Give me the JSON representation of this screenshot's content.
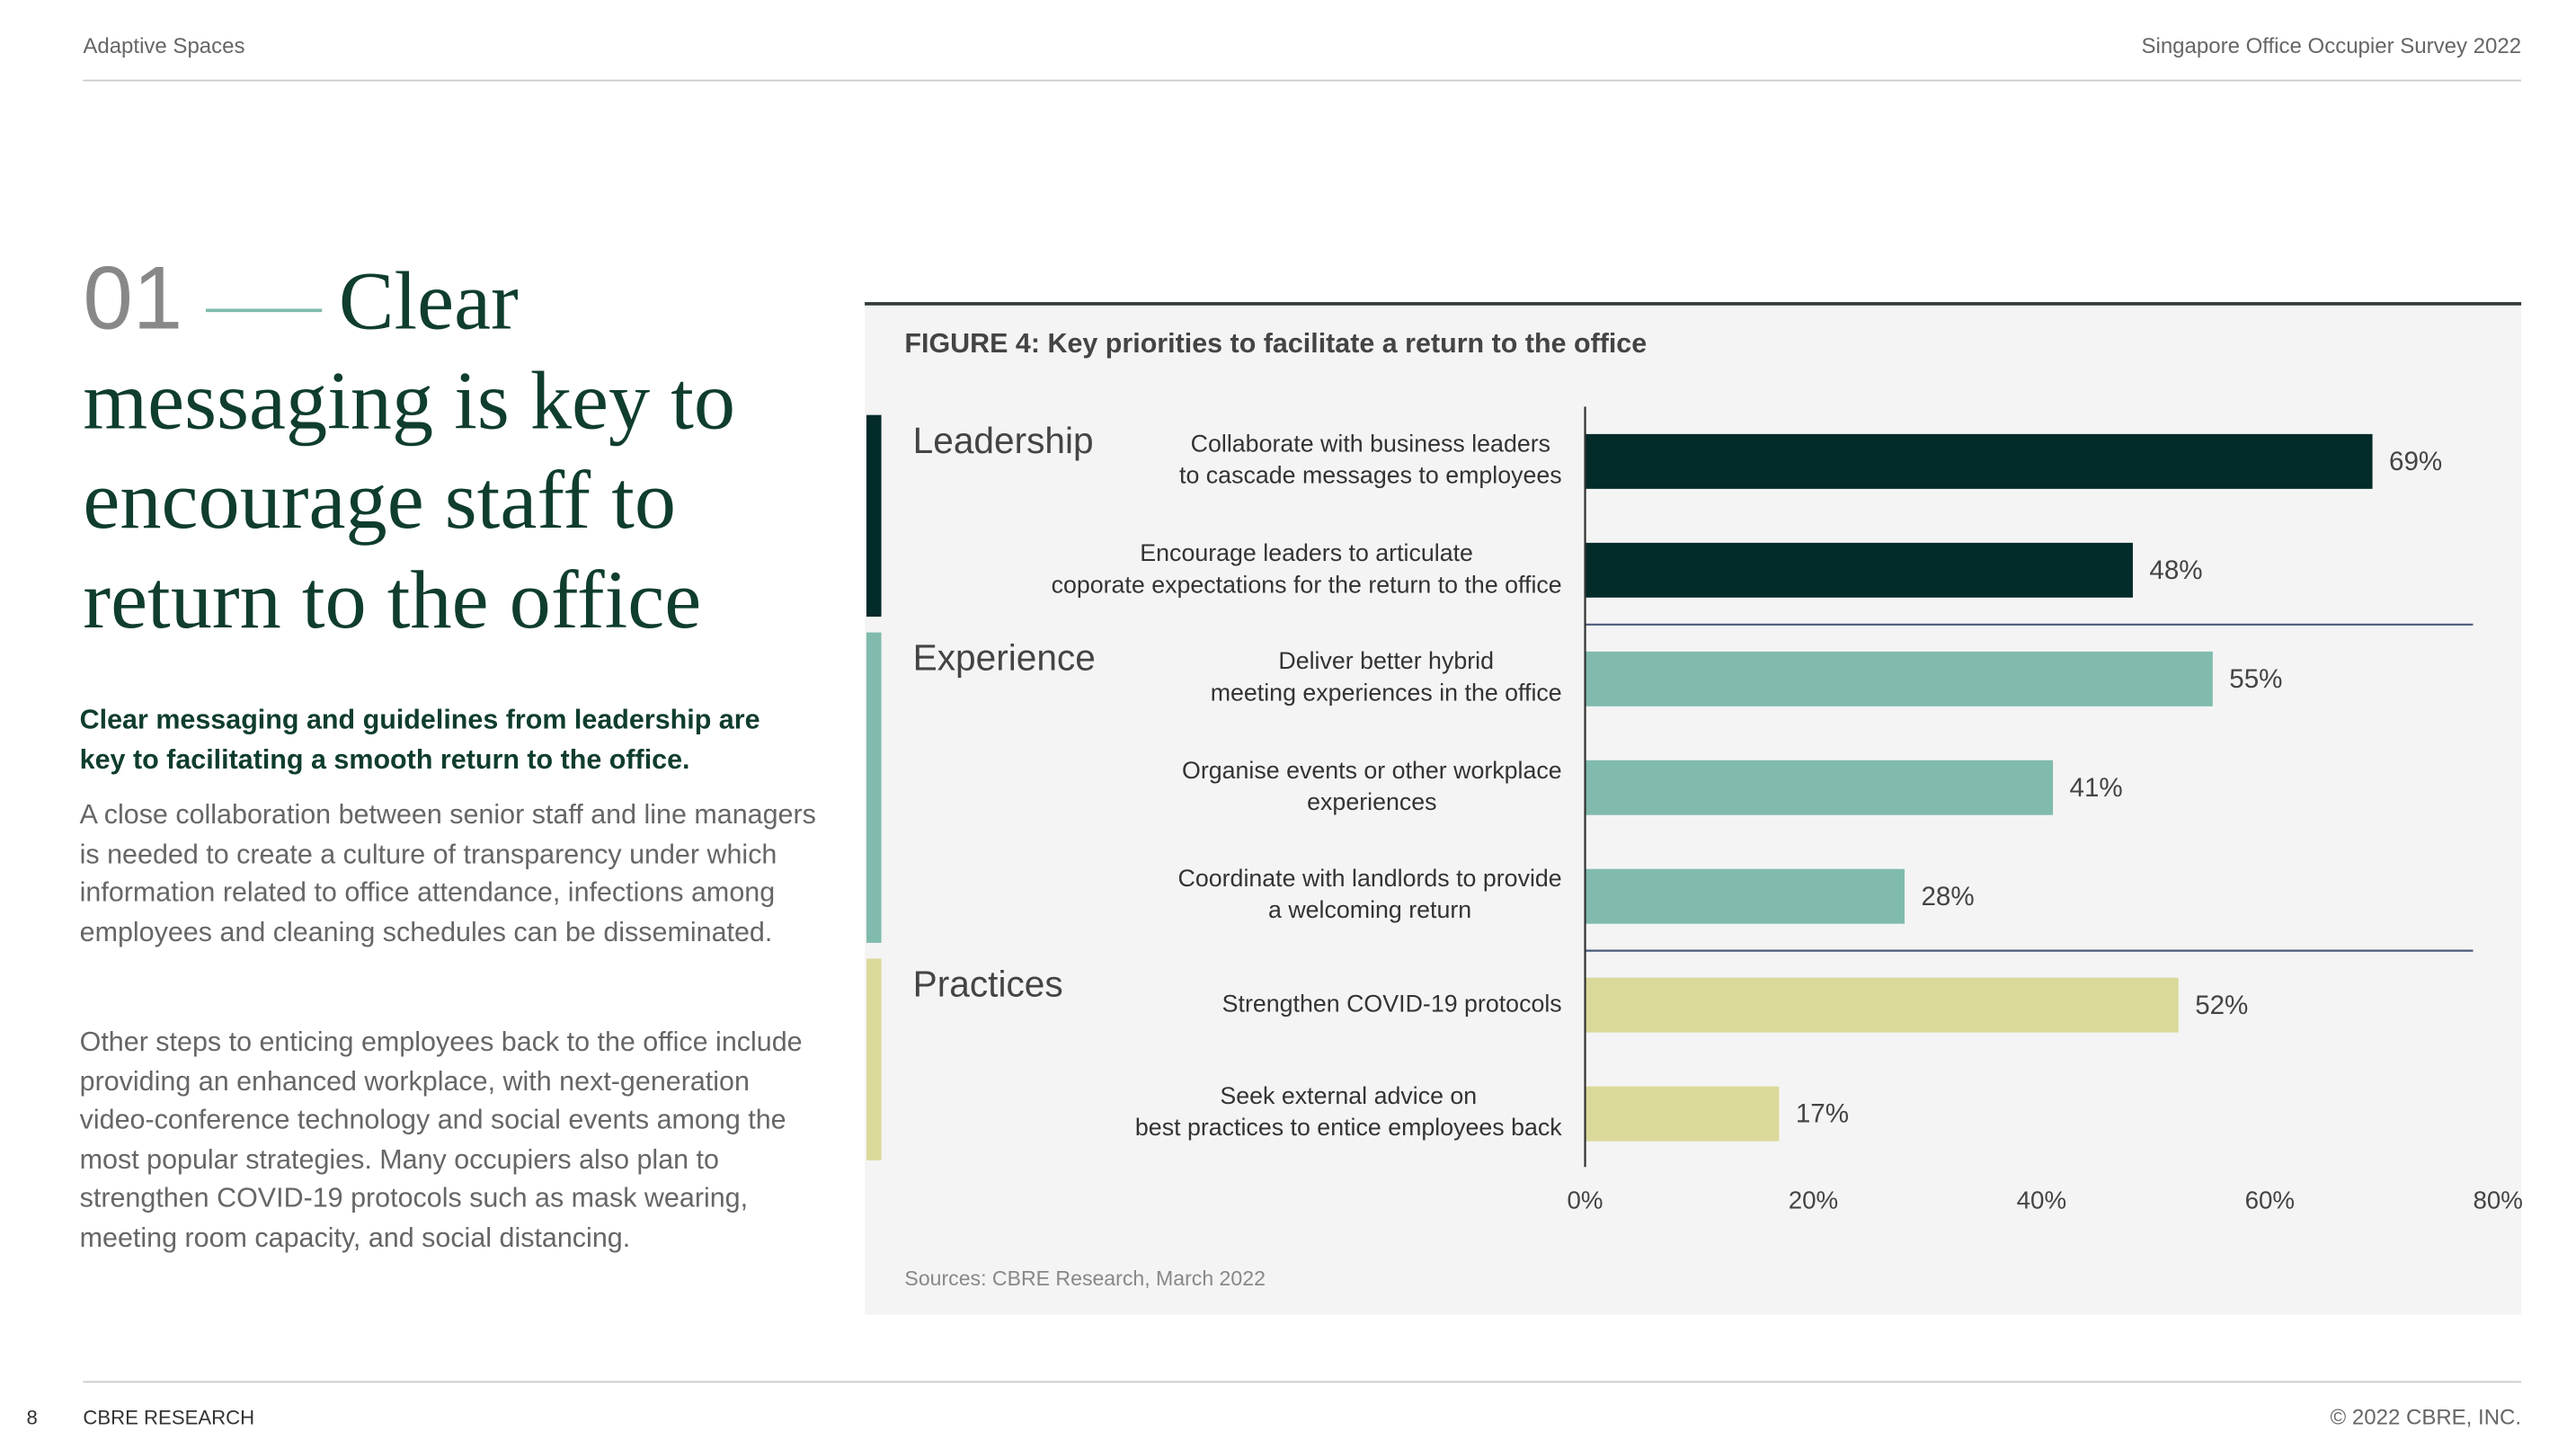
{
  "header": {
    "left": "Adaptive Spaces",
    "right": "Singapore Office Occupier Survey 2022"
  },
  "heading": {
    "number": "01",
    "text": "Clear messaging is key to encourage staff to return to the office"
  },
  "intro": "Clear messaging and guidelines from leadership are key to facilitating a smooth return to the office.",
  "paragraphs": [
    "A close collaboration between senior staff and line managers is needed to create a culture of transparency under which information related to office attendance, infections among employees and cleaning schedules can be disseminated.",
    "Other steps to enticing employees back to the office include providing an enhanced workplace, with next-generation video-conference technology and social events among the most popular strategies. Many occupiers also plan to strengthen COVID-19 protocols such as mask wearing, meeting room capacity, and social distancing."
  ],
  "chart_data": {
    "type": "bar",
    "orientation": "horizontal",
    "title": "FIGURE 4: Key priorities to facilitate a return to the office",
    "source": "Sources: CBRE Research, March 2022",
    "series": [
      {
        "name": "Leadership",
        "color": "#022b2a",
        "categories": [
          "Collaborate with business leaders\nto cascade messages to employees",
          "Encourage leaders to articulate\ncoporate expectations for the return to the office"
        ],
        "values": [
          69,
          48
        ],
        "value_labels": [
          "69%",
          "48%"
        ]
      },
      {
        "name": "Experience",
        "color": "#80bbad",
        "categories": [
          "Deliver better hybrid\nmeeting experiences in the office",
          "Organise events or other workplace\nexperiences",
          "Coordinate with landlords to provide\na welcoming return"
        ],
        "values": [
          55,
          41,
          28
        ],
        "value_labels": [
          "55%",
          "41%",
          "28%"
        ]
      },
      {
        "name": "Practices",
        "color": "#dbd99a",
        "categories": [
          "Strengthen COVID-19 protocols",
          "Seek external advice on\nbest practices to entice employees back"
        ],
        "values": [
          52,
          17
        ],
        "value_labels": [
          "52%",
          "17%"
        ]
      }
    ],
    "xlim": [
      0,
      80
    ],
    "xticks": [
      {
        "value": 0,
        "label": "0%"
      },
      {
        "value": 20,
        "label": "20%"
      },
      {
        "value": 40,
        "label": "40%"
      },
      {
        "value": 60,
        "label": "60%"
      },
      {
        "value": 80,
        "label": "80%"
      }
    ]
  },
  "footer": {
    "page": "8",
    "left": "CBRE RESEARCH",
    "right": "© 2022 CBRE, INC."
  }
}
